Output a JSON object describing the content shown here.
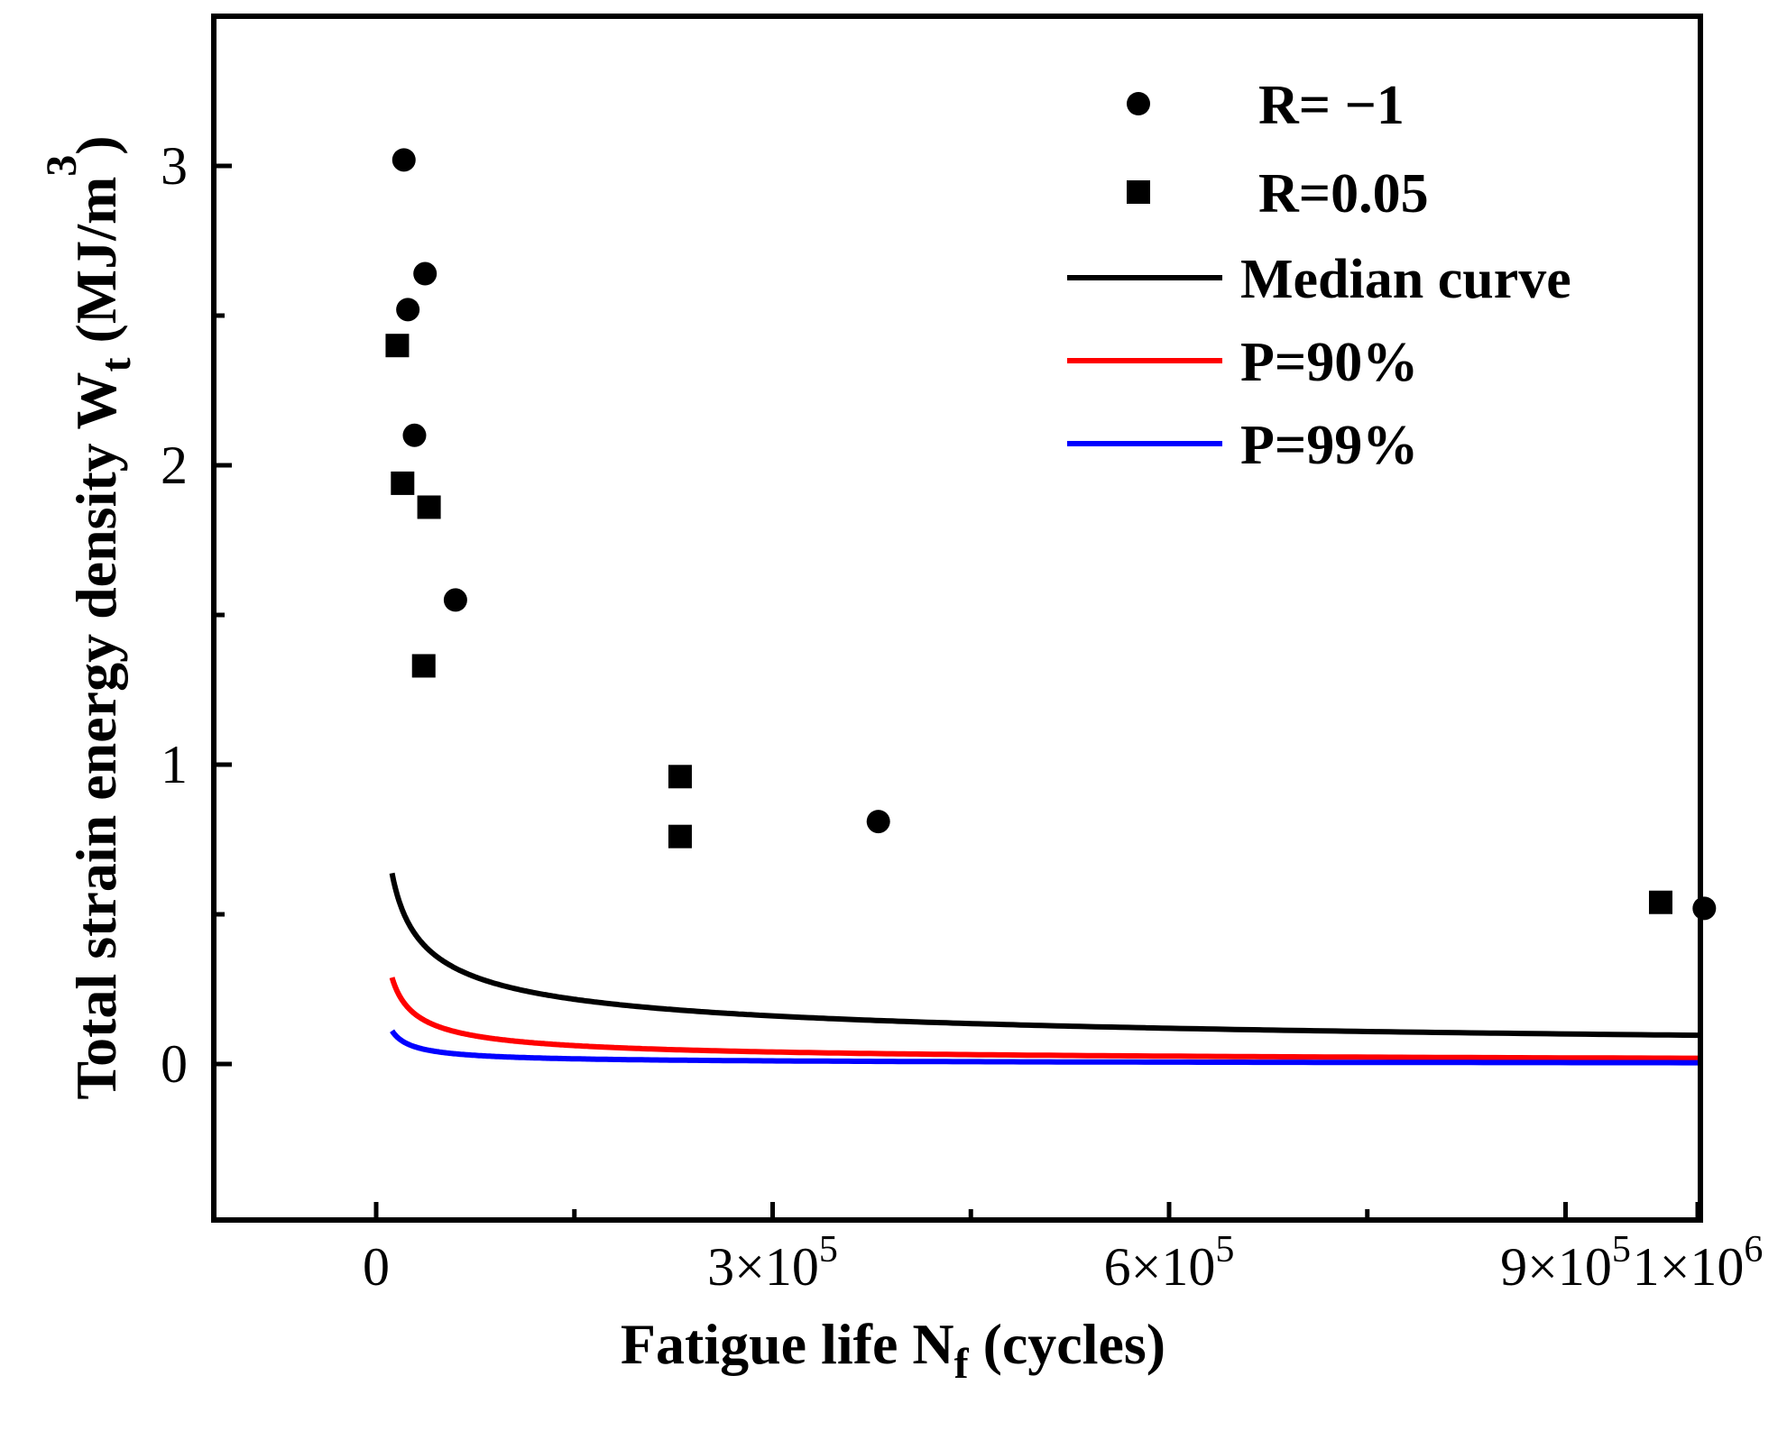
{
  "chart_data": {
    "type": "scatter",
    "title": "",
    "xlabel": "Fatigue life N",
    "xlabel_subscript": "f",
    "xlabel_suffix": " (cycles)",
    "ylabel": "Total strain energy density  W",
    "ylabel_subscript": "t",
    "ylabel_suffix": " (MJ/m",
    "ylabel_superscript": "3",
    "ylabel_close": ")",
    "xlim": [
      -100000,
      1000000
    ],
    "ylim": [
      -0.5,
      3.5
    ],
    "x_ticks": [
      {
        "value": 0,
        "mantissa": "0",
        "exponent": ""
      },
      {
        "value": 300000,
        "mantissa": "3×10",
        "exponent": "5"
      },
      {
        "value": 600000,
        "mantissa": "6×10",
        "exponent": "5"
      },
      {
        "value": 900000,
        "mantissa": "9×10",
        "exponent": "5"
      },
      {
        "value": 1000000,
        "mantissa": "1×10",
        "exponent": "6"
      }
    ],
    "x_minor_ticks": [
      150000,
      450000,
      750000
    ],
    "y_ticks": [
      {
        "value": 0,
        "label": "0"
      },
      {
        "value": 1,
        "label": "1"
      },
      {
        "value": 2,
        "label": "2"
      },
      {
        "value": 3,
        "label": "3"
      }
    ],
    "y_minor_ticks": [
      0.5,
      1.5,
      2.5
    ],
    "legend_position": "top-right",
    "scatter_series": [
      {
        "name": "R= −1",
        "marker": "circle",
        "color": "#000000",
        "points": [
          [
            21000,
            3.02
          ],
          [
            37000,
            2.64
          ],
          [
            24000,
            2.52
          ],
          [
            29000,
            2.1
          ],
          [
            60000,
            1.55
          ],
          [
            380000,
            0.81
          ],
          [
            1005000,
            0.52
          ]
        ]
      },
      {
        "name": "R=0.05",
        "marker": "square",
        "color": "#000000",
        "points": [
          [
            16000,
            2.4
          ],
          [
            20000,
            1.94
          ],
          [
            40000,
            1.86
          ],
          [
            36000,
            1.33
          ],
          [
            230000,
            0.96
          ],
          [
            230000,
            0.76
          ],
          [
            972000,
            0.54
          ]
        ]
      }
    ],
    "line_series": [
      {
        "name": "Median curve",
        "color": "#000000",
        "x_start": 12000,
        "x_end": 1000000,
        "A": 35.5,
        "k": -0.428
      },
      {
        "name": "P=90%",
        "color": "#ff0000",
        "x_start": 12000,
        "x_end": 1000000,
        "A": 91.0,
        "k": -0.6125
      },
      {
        "name": "P=99%",
        "color": "#0000ff",
        "x_start": 12000,
        "x_end": 1000000,
        "A": 108.0,
        "k": -0.7328
      }
    ]
  }
}
